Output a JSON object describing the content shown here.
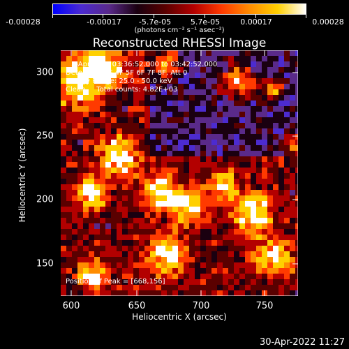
{
  "colorbar": {
    "ticks": [
      "-0.00028",
      "-0.00017",
      "-5.7e-05",
      "5.7e-05",
      "0.00017",
      "0.00028"
    ],
    "unit": "(photons cm⁻² s⁻¹ asec⁻²)",
    "colors": [
      "#0000ff",
      "#4c2bd0",
      "#5a2a8a",
      "#1a0010",
      "#5a0000",
      "#b30000",
      "#ff3a00",
      "#ff8c00",
      "#ffd000",
      "#ffffff"
    ]
  },
  "title": "Reconstructed RHESSI Image",
  "info": {
    "time": "3-Apr-2003 03:36:52.000 to 03:42:52.000",
    "detectors": "Detectors: 3F 4F 5F 6F 7F 8F, Att 0",
    "energy": "Energy Range: 25.0 - 50.0 keV",
    "clean": "Clean     Total counts: 4.82E+03",
    "peak": "Position of Peak = [668,156]"
  },
  "axes": {
    "x_label": "Heliocentric X (arcsec)",
    "y_label": "Heliocentric Y (arcsec)",
    "x_ticks": [
      "600",
      "650",
      "700",
      "750"
    ],
    "y_ticks": [
      "300",
      "250",
      "200",
      "150"
    ]
  },
  "chart_data": {
    "type": "heatmap",
    "title": "Reconstructed RHESSI Image",
    "xlabel": "Heliocentric X (arcsec)",
    "ylabel": "Heliocentric Y (arcsec)",
    "xlim": [
      585,
      776
    ],
    "ylim": [
      123,
      318
    ],
    "peak": [
      668,
      156
    ]
  },
  "footer": {
    "timestamp": "30-Apr-2022 11:27"
  }
}
